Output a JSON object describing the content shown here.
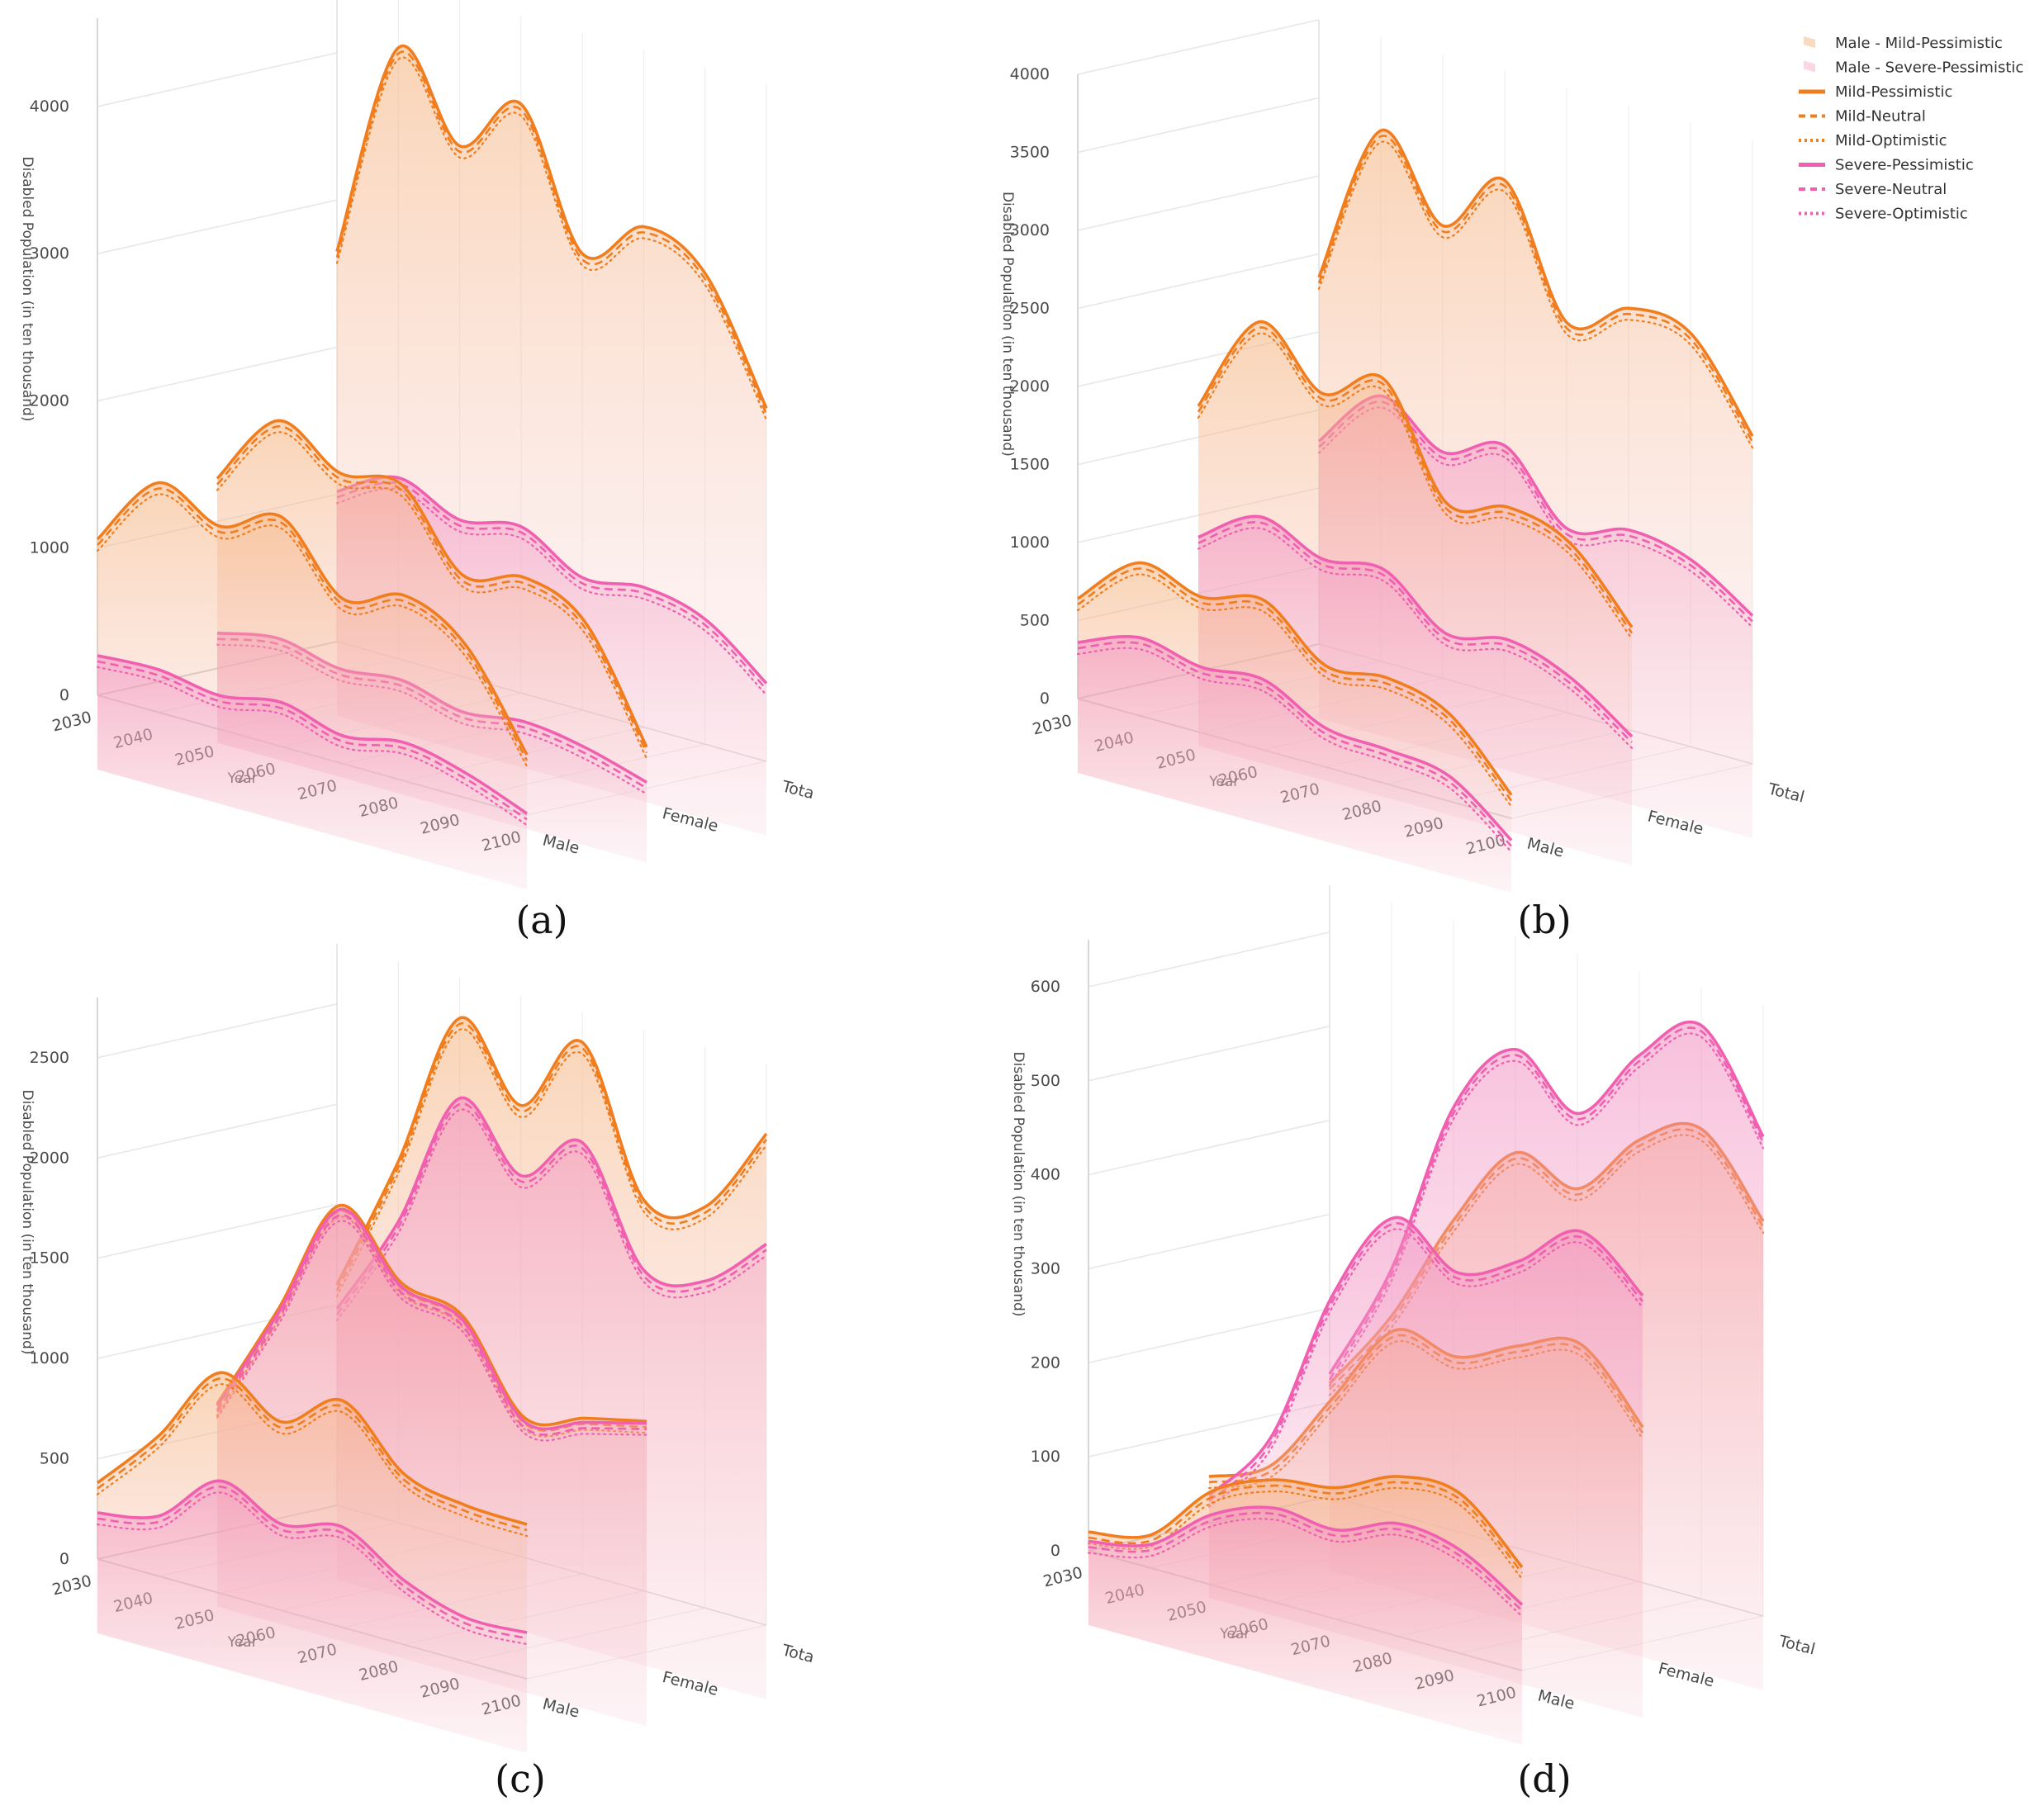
{
  "legend": {
    "items": [
      {
        "label": "Male - Mild-Pessimistic",
        "kind": "area",
        "color": "#f9c9a4"
      },
      {
        "label": "Male - Severe-Pessimistic",
        "kind": "area",
        "color": "#f9c4dd"
      },
      {
        "label": "Mild-Pessimistic",
        "kind": "solid",
        "color": "#f07d1e"
      },
      {
        "label": "Mild-Neutral",
        "kind": "dash",
        "color": "#f07d1e"
      },
      {
        "label": "Mild-Optimistic",
        "kind": "dot",
        "color": "#f07d1e"
      },
      {
        "label": "Severe-Pessimistic",
        "kind": "solid",
        "color": "#f05fb0"
      },
      {
        "label": "Severe-Neutral",
        "kind": "dash",
        "color": "#f05fb0"
      },
      {
        "label": "Severe-Optimistic",
        "kind": "dot",
        "color": "#f05fb0"
      }
    ]
  },
  "colors": {
    "mild": "#f07d1e",
    "severe": "#f05fb0",
    "mild_fill": "#f6b27a",
    "severe_fill": "#f28bbf"
  },
  "chart_data": [
    {
      "panel": "(a)",
      "type": "line",
      "zlabel": "Disabled Population (in ten thousand)",
      "xlabel": "Year",
      "x": [
        2030,
        2040,
        2050,
        2060,
        2070,
        2080,
        2090,
        2100
      ],
      "x_ticks": [
        "2030",
        "2040",
        "2050",
        "2060",
        "2070",
        "2080",
        "2090",
        "2100"
      ],
      "groups": [
        "Male",
        "Female",
        "Tota"
      ],
      "z_ticks": [
        0,
        1000,
        2000,
        3000,
        4000
      ],
      "zlim": [
        0,
        4600
      ],
      "series": [
        {
          "name": "Mild",
          "group": "Male",
          "values": [
            1060,
            1560,
            1380,
            1560,
            1120,
            1260,
            1040,
            410
          ]
        },
        {
          "name": "Severe",
          "group": "Male",
          "values": [
            270,
            290,
            230,
            300,
            190,
            260,
            170,
            10
          ]
        },
        {
          "name": "Mild",
          "group": "Female",
          "values": [
            1290,
            1800,
            1560,
            1600,
            1100,
            1200,
            1010,
            280
          ]
        },
        {
          "name": "Severe",
          "group": "Female",
          "values": [
            240,
            320,
            230,
            270,
            170,
            220,
            160,
            40
          ]
        },
        {
          "name": "Mild",
          "group": "Tota",
          "values": [
            2650,
            4150,
            3600,
            4000,
            3100,
            3400,
            3200,
            2400
          ]
        },
        {
          "name": "Severe",
          "group": "Tota",
          "values": [
            1020,
            1230,
            1060,
            1130,
            900,
            950,
            850,
            530
          ]
        }
      ]
    },
    {
      "panel": "(b)",
      "type": "line",
      "zlabel": "Disabled Population (in ten thousand)",
      "xlabel": "Year",
      "x": [
        2030,
        2040,
        2050,
        2060,
        2070,
        2080,
        2090,
        2100
      ],
      "x_ticks": [
        "2030",
        "2040",
        "2050",
        "2060",
        "2070",
        "2080",
        "2090",
        "2100"
      ],
      "groups": [
        "Male",
        "Female",
        "Total"
      ],
      "z_ticks": [
        0,
        500,
        1000,
        1500,
        2000,
        2500,
        3000,
        3500,
        4000
      ],
      "zlim": [
        0,
        4000
      ],
      "series": [
        {
          "name": "Mild",
          "group": "Male",
          "values": [
            640,
            980,
            870,
            960,
            650,
            680,
            560,
            150
          ]
        },
        {
          "name": "Severe",
          "group": "Male",
          "values": [
            360,
            500,
            420,
            450,
            250,
            220,
            160,
            -140
          ]
        },
        {
          "name": "Mild",
          "group": "Female",
          "values": [
            1700,
            2350,
            2000,
            2200,
            1520,
            1600,
            1480,
            1050
          ]
        },
        {
          "name": "Severe",
          "group": "Female",
          "values": [
            860,
            1100,
            940,
            980,
            680,
            750,
            620,
            350
          ]
        },
        {
          "name": "Mild",
          "group": "Total",
          "values": [
            2350,
            3400,
            2900,
            3300,
            2500,
            2700,
            2650,
            2100
          ]
        },
        {
          "name": "Severe",
          "group": "Total",
          "values": [
            1300,
            1700,
            1450,
            1600,
            1180,
            1280,
            1200,
            950
          ]
        }
      ]
    },
    {
      "panel": "(c)",
      "type": "line",
      "zlabel": "Disabled Population (in ten thousand)",
      "xlabel": "Year",
      "x": [
        2030,
        2040,
        2050,
        2060,
        2070,
        2080,
        2090,
        2100
      ],
      "x_ticks": [
        "2030",
        "2040",
        "2050",
        "2060",
        "2070",
        "2080",
        "2090",
        "2100"
      ],
      "groups": [
        "Male",
        "Female",
        "Tota"
      ],
      "z_ticks": [
        0,
        500,
        1000,
        1500,
        2000,
        2500
      ],
      "zlim": [
        0,
        2800
      ],
      "series": [
        {
          "name": "Mild",
          "group": "Male",
          "values": [
            380,
            700,
            1100,
            940,
            1130,
            850,
            780,
            770
          ]
        },
        {
          "name": "Severe",
          "group": "Male",
          "values": [
            230,
            300,
            560,
            430,
            500,
            320,
            220,
            230
          ]
        },
        {
          "name": "Mild",
          "group": "Female",
          "values": [
            640,
            1200,
            1800,
            1500,
            1420,
            1000,
            1080,
            1150
          ]
        },
        {
          "name": "Severe",
          "group": "Female",
          "values": [
            630,
            1180,
            1780,
            1480,
            1400,
            980,
            1060,
            1140
          ]
        },
        {
          "name": "Mild",
          "group": "Tota",
          "values": [
            1100,
            1800,
            2600,
            2250,
            2650,
            1950,
            2000,
            2450
          ]
        },
        {
          "name": "Severe",
          "group": "Tota",
          "values": [
            980,
            1500,
            2200,
            1900,
            2150,
            1600,
            1630,
            1900
          ]
        }
      ]
    },
    {
      "panel": "(d)",
      "type": "line",
      "zlabel": "Disabled Population (in ten thousand)",
      "xlabel": "Year",
      "x": [
        2030,
        2040,
        2050,
        2060,
        2070,
        2080,
        2090,
        2100
      ],
      "x_ticks": [
        "2030",
        "2040",
        "2050",
        "2060",
        "2070",
        "2080",
        "2090",
        "2100"
      ],
      "groups": [
        "Male",
        "Female",
        "Total"
      ],
      "z_ticks": [
        0,
        100,
        200,
        300,
        400,
        500,
        600
      ],
      "zlim": [
        0,
        650
      ],
      "series": [
        {
          "name": "Mild",
          "group": "Male",
          "values": [
            20,
            35,
            100,
            130,
            140,
            170,
            170,
            110
          ]
        },
        {
          "name": "Severe",
          "group": "Male",
          "values": [
            10,
            25,
            75,
            100,
            95,
            120,
            110,
            70
          ]
        },
        {
          "name": "Mild",
          "group": "Female",
          "values": [
            50,
            80,
            170,
            260,
            250,
            280,
            300,
            230
          ]
        },
        {
          "name": "Severe",
          "group": "Female",
          "values": [
            30,
            110,
            280,
            380,
            340,
            370,
            420,
            370
          ]
        },
        {
          "name": "Mild",
          "group": "Total",
          "values": [
            120,
            210,
            330,
            420,
            400,
            470,
            500,
            420
          ]
        },
        {
          "name": "Severe",
          "group": "Total",
          "values": [
            130,
            260,
            450,
            530,
            480,
            560,
            610,
            510
          ]
        }
      ]
    }
  ]
}
